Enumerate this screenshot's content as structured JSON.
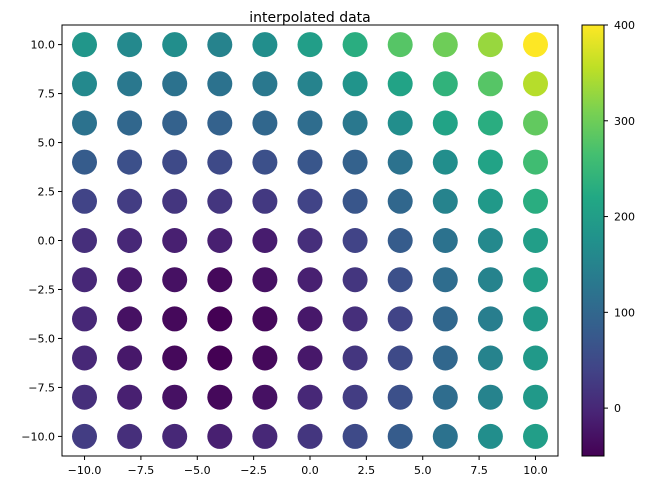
{
  "chart_data": {
    "type": "scatter",
    "title": "interpolated data",
    "xlabel": "",
    "ylabel": "",
    "xlim": [
      -11,
      11
    ],
    "ylim": [
      -11,
      11
    ],
    "xticks": [
      -10,
      -7.5,
      -5,
      -2.5,
      0,
      2.5,
      5,
      7.5,
      10
    ],
    "xtick_labels": [
      "−10.0",
      "−7.5",
      "−5.0",
      "−2.5",
      "0.0",
      "2.5",
      "5.0",
      "7.5",
      "10.0"
    ],
    "yticks": [
      -10,
      -7.5,
      -5,
      -2.5,
      0,
      2.5,
      5,
      7.5,
      10
    ],
    "ytick_labels": [
      "−10.0",
      "−7.5",
      "−5.0",
      "−2.5",
      "0.0",
      "2.5",
      "5.0",
      "7.5",
      "10.0"
    ],
    "grid": false,
    "x": [
      -10,
      -8,
      -6,
      -4,
      -2,
      0,
      2,
      4,
      6,
      8,
      10
    ],
    "y": [
      10,
      8,
      6,
      4,
      2,
      0,
      -2,
      -4,
      -6,
      -8,
      -10
    ],
    "values": [
      [
        185,
        160,
        170,
        150,
        170,
        200,
        230,
        280,
        300,
        330,
        400
      ],
      [
        160,
        130,
        120,
        120,
        130,
        150,
        180,
        210,
        240,
        280,
        350
      ],
      [
        120,
        100,
        90,
        90,
        100,
        110,
        130,
        170,
        210,
        230,
        290
      ],
      [
        80,
        60,
        50,
        50,
        60,
        70,
        90,
        120,
        170,
        210,
        260
      ],
      [
        40,
        30,
        20,
        20,
        25,
        40,
        70,
        100,
        150,
        190,
        230
      ],
      [
        10,
        0,
        -10,
        -10,
        -15,
        10,
        40,
        80,
        120,
        160,
        200
      ],
      [
        0,
        -20,
        -30,
        -40,
        -30,
        -10,
        20,
        60,
        110,
        150,
        200
      ],
      [
        0,
        -30,
        -40,
        -50,
        -40,
        -20,
        10,
        40,
        100,
        140,
        190
      ],
      [
        0,
        -20,
        -40,
        -50,
        -40,
        -20,
        20,
        50,
        100,
        150,
        190
      ],
      [
        10,
        -10,
        -30,
        -40,
        -30,
        0,
        30,
        60,
        110,
        150,
        190
      ],
      [
        30,
        10,
        0,
        -10,
        0,
        20,
        50,
        80,
        120,
        170,
        200
      ]
    ],
    "colorbar": {
      "range": [
        -50,
        400
      ],
      "ticks": [
        0,
        100,
        200,
        300,
        400
      ],
      "tick_labels": [
        "0",
        "100",
        "200",
        "300",
        "400"
      ],
      "colormap": "viridis"
    }
  }
}
